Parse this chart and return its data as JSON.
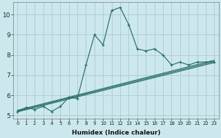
{
  "xlabel": "Humidex (Indice chaleur)",
  "background_color": "#cce8ee",
  "grid_color": "#b0cdd4",
  "line_color": "#2a7065",
  "xlim": [
    -0.5,
    23.5
  ],
  "ylim": [
    4.85,
    10.6
  ],
  "xticks": [
    0,
    1,
    2,
    3,
    4,
    5,
    6,
    7,
    8,
    9,
    10,
    11,
    12,
    13,
    14,
    15,
    16,
    17,
    18,
    19,
    20,
    21,
    22,
    23
  ],
  "yticks": [
    5,
    6,
    7,
    8,
    9,
    10
  ],
  "series1_x": [
    0,
    1,
    2,
    3,
    4,
    5,
    6,
    7,
    8,
    9,
    10,
    11,
    12,
    13,
    14,
    15,
    16,
    17,
    18,
    19,
    20,
    21,
    22,
    23
  ],
  "series1_y": [
    5.2,
    5.4,
    5.3,
    5.45,
    5.2,
    5.45,
    5.9,
    5.85,
    7.5,
    9.0,
    8.5,
    10.2,
    10.35,
    9.5,
    8.3,
    8.2,
    8.3,
    8.0,
    7.5,
    7.65,
    7.5,
    7.65,
    7.65,
    7.65
  ],
  "trend1_start": 5.18,
  "trend1_end": 7.62,
  "trend2_start": 5.22,
  "trend2_end": 7.68,
  "trend3_start": 5.26,
  "trend3_end": 7.74,
  "xlabel_fontsize": 6.5,
  "tick_fontsize_x": 5.0,
  "tick_fontsize_y": 6.5
}
